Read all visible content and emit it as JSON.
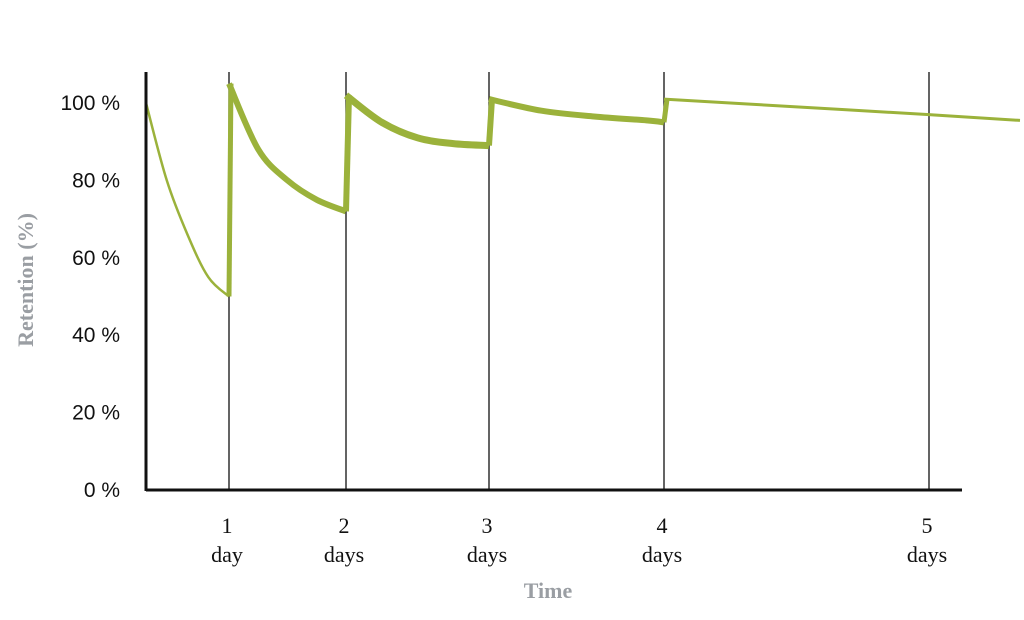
{
  "chart_data": {
    "type": "line",
    "xlabel": "Time",
    "ylabel": "Retention (%)",
    "ylim": [
      0,
      100
    ],
    "xlim": [
      0,
      5.35
    ],
    "yticks": [
      "0 %",
      "20 %",
      "40 %",
      "60 %",
      "80 %",
      "100 %"
    ],
    "ytick_values": [
      0,
      20,
      40,
      60,
      80,
      100
    ],
    "xticks": [
      {
        "x": 1,
        "line1": "1",
        "line2": "day"
      },
      {
        "x": 2,
        "line1": "2",
        "line2": "days"
      },
      {
        "x": 3,
        "line1": "3",
        "line2": "days"
      },
      {
        "x": 4,
        "line1": "4",
        "line2": "days"
      },
      {
        "x": 5,
        "line1": "5",
        "line2": "days"
      }
    ],
    "grid": "vertical lines at each review day",
    "line_color": "#9bb23b",
    "series": [
      {
        "segment": 1,
        "x": [
          0,
          0.25,
          0.5,
          0.75,
          1.0
        ],
        "y": [
          100,
          80,
          66,
          55,
          50
        ]
      },
      {
        "segment": 2,
        "x": [
          1.0,
          1.25,
          1.5,
          1.75,
          2.0
        ],
        "y": [
          105,
          88,
          80,
          75,
          72
        ]
      },
      {
        "segment": 3,
        "x": [
          2.0,
          2.25,
          2.5,
          2.75,
          3.0
        ],
        "y": [
          102,
          95,
          91,
          89.5,
          89
        ]
      },
      {
        "segment": 4,
        "x": [
          3.0,
          3.3,
          3.6,
          3.9,
          4.0
        ],
        "y": [
          101,
          98,
          96.5,
          95.5,
          95
        ]
      },
      {
        "segment": 5,
        "x": [
          4.0,
          4.5,
          5.0,
          5.35
        ],
        "y": [
          101,
          99,
          97,
          95.5
        ]
      }
    ]
  }
}
